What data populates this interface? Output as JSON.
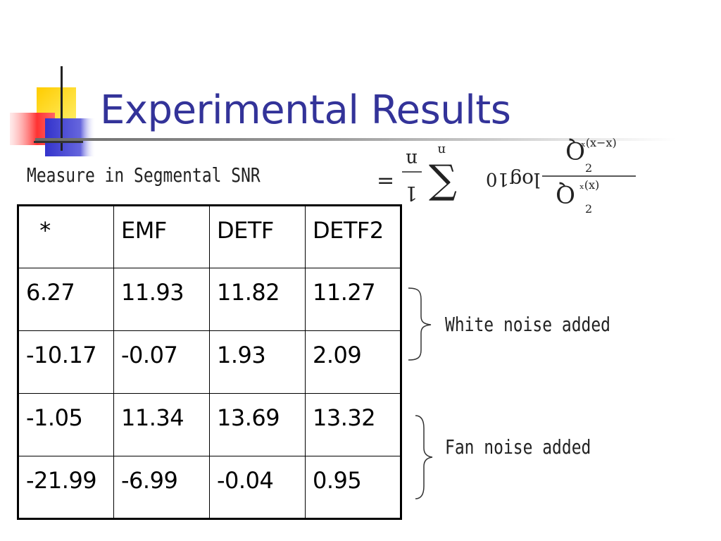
{
  "slide": {
    "title": "Experimental Results",
    "measure_label": "Measure in Segmental SNR",
    "formula": {
      "equals": "=",
      "frac_num": "1",
      "frac_den": "n",
      "sum": "∑",
      "sum_upper": "n",
      "log_label": "log",
      "log_base": "10",
      "num_main": "Q",
      "num_sub": "2",
      "num_sup": "ₓ(x−x)",
      "den_main": "Q",
      "den_sub": "2",
      "den_sup": "ₓ(x)"
    }
  },
  "table": {
    "header": [
      "*",
      "EMF",
      "DETF",
      "DETF2"
    ],
    "rows": [
      [
        "6.27",
        "11.93",
        "11.82",
        "11.27"
      ],
      [
        "-10.17",
        "-0.07",
        "1.93",
        "2.09"
      ],
      [
        "-1.05",
        "11.34",
        "13.69",
        "13.32"
      ],
      [
        "-21.99",
        "-6.99",
        "-0.04",
        "0.95"
      ]
    ]
  },
  "annotations": {
    "white_noise": "White noise added",
    "fan_noise": "Fan noise added"
  },
  "colors": {
    "title": "#333399",
    "logo_yellow": "#ffcc00",
    "logo_red": "#ff3333",
    "logo_blue": "#3333cc"
  }
}
